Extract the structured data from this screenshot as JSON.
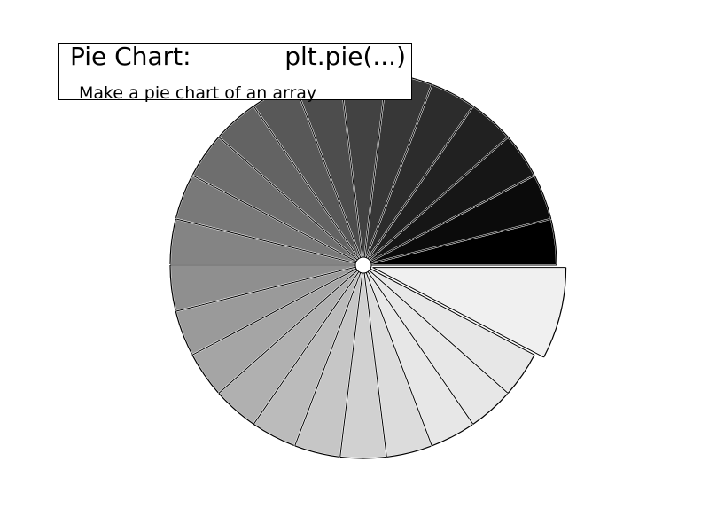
{
  "title": {
    "left": "Pie Chart:",
    "right": "plt.pie(...)",
    "subtitle": "Make a pie chart of an array"
  },
  "chart_data": {
    "type": "pie",
    "values": [
      1,
      1,
      1,
      1,
      1,
      1,
      1,
      1,
      1,
      1,
      1,
      1,
      1,
      1,
      1,
      1,
      1,
      1,
      1,
      1,
      1,
      1,
      1,
      1,
      2
    ],
    "explode": [
      0,
      0,
      0,
      0,
      0,
      0,
      0,
      0,
      0,
      0,
      0,
      0,
      0,
      0,
      0,
      0,
      0,
      0,
      0,
      0,
      0,
      0,
      0,
      0,
      0.05
    ],
    "colors": [
      "#000000",
      "#0b0b0b",
      "#161616",
      "#212121",
      "#2c2c2c",
      "#373737",
      "#424242",
      "#4d4d4d",
      "#585858",
      "#636363",
      "#6e6e6e",
      "#797979",
      "#848484",
      "#8f8f8f",
      "#9a9a9a",
      "#a5a5a5",
      "#b0b0b0",
      "#bbbbbb",
      "#c6c6c6",
      "#d1d1d1",
      "#dcdcdc",
      "#e7e7e7",
      "#e7e7e7",
      "#e7e7e7",
      "#f0f0f0"
    ],
    "start_angle": 0,
    "counterclock": true,
    "edge_color": "#000000",
    "wedge_outline": "#ffffff",
    "center_hole": true
  }
}
